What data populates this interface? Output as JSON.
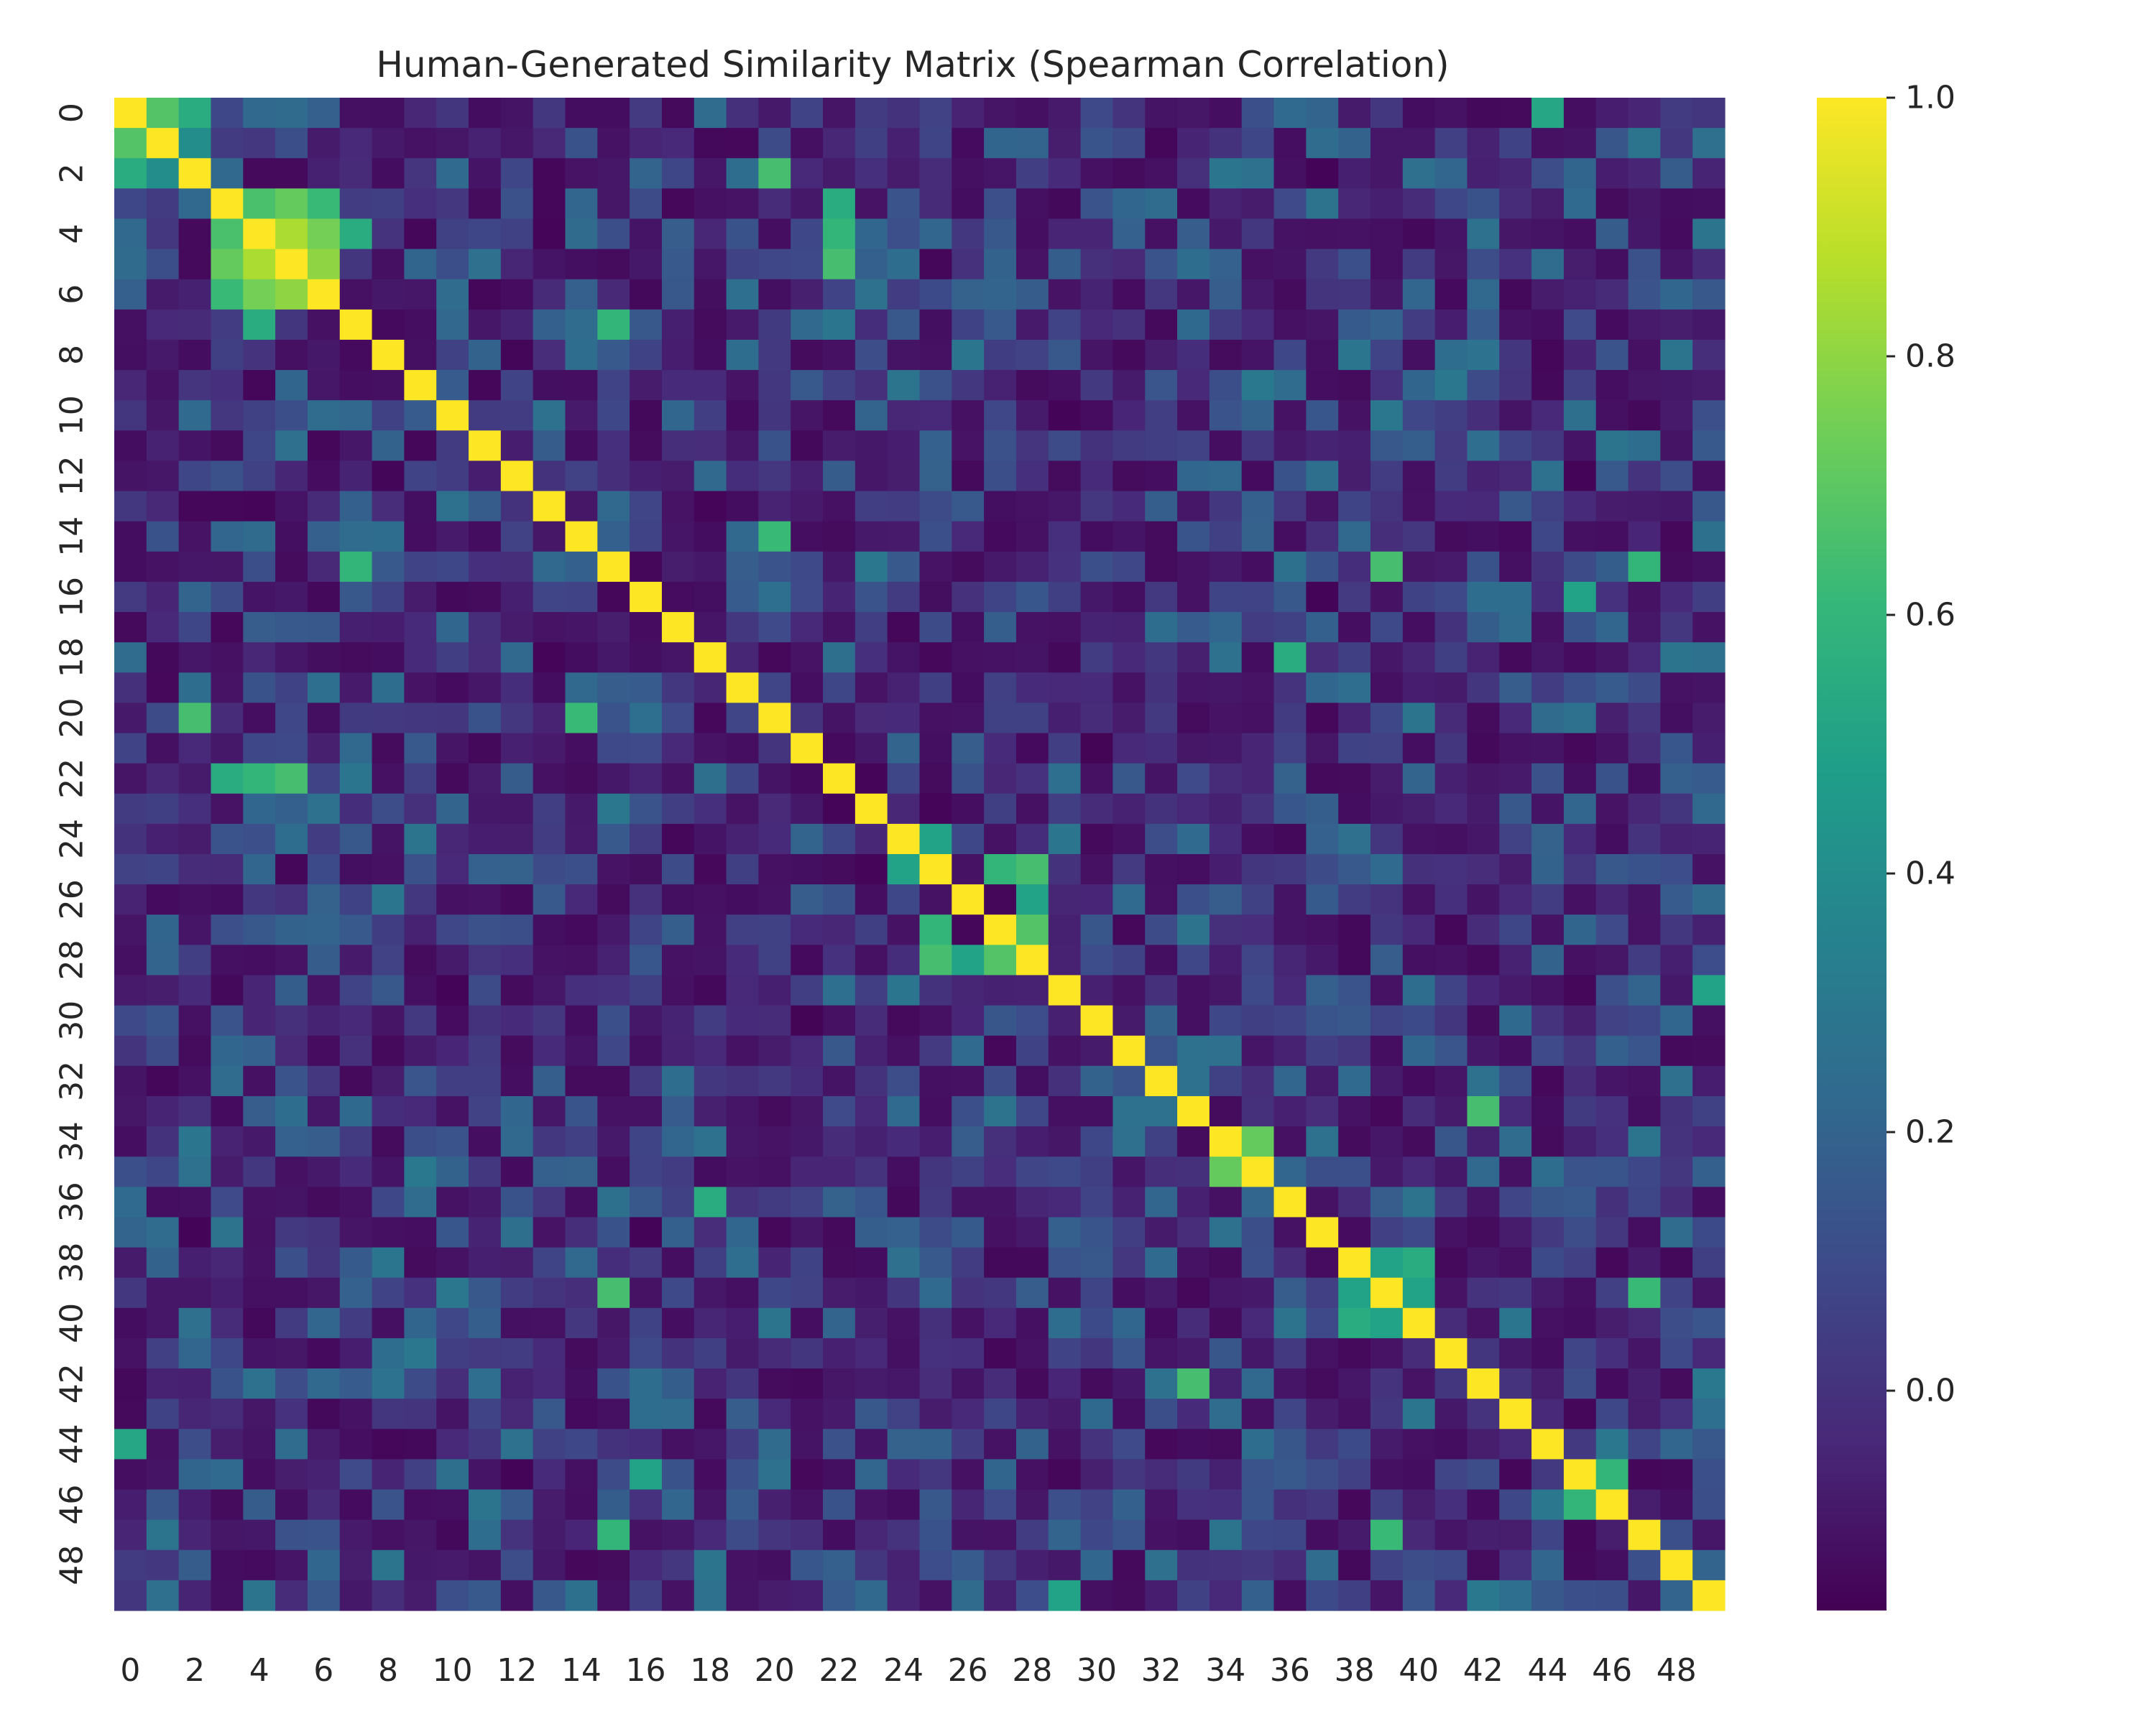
{
  "chart_data": {
    "type": "heatmap",
    "title": "Human-Generated Similarity Matrix (Spearman Correlation)",
    "xlabel": "",
    "ylabel": "",
    "n": 50,
    "x_tick_labels": [
      "0",
      "2",
      "4",
      "6",
      "8",
      "10",
      "12",
      "14",
      "16",
      "18",
      "20",
      "22",
      "24",
      "26",
      "28",
      "30",
      "32",
      "34",
      "36",
      "38",
      "40",
      "42",
      "44",
      "46",
      "48"
    ],
    "y_tick_labels": [
      "0",
      "2",
      "4",
      "6",
      "8",
      "10",
      "12",
      "14",
      "16",
      "18",
      "20",
      "22",
      "24",
      "26",
      "28",
      "30",
      "32",
      "34",
      "36",
      "38",
      "40",
      "42",
      "44",
      "46",
      "48"
    ],
    "tick_step": 2,
    "colormap": "viridis",
    "vmin": -0.17,
    "vmax": 1.0,
    "colorbar_ticks": [
      {
        "value": 0.0,
        "label": "0.0"
      },
      {
        "value": 0.2,
        "label": "0.2"
      },
      {
        "value": 0.4,
        "label": "0.4"
      },
      {
        "value": 0.6,
        "label": "0.6"
      },
      {
        "value": 0.8,
        "label": "0.8"
      },
      {
        "value": 1.0,
        "label": "1.0"
      }
    ],
    "grid": false,
    "legend": "colorbar-right",
    "diagonal_value": 1.0,
    "strong_pairs": [
      {
        "i": 0,
        "j": 1,
        "value": 0.68
      },
      {
        "i": 0,
        "j": 2,
        "value": 0.55
      },
      {
        "i": 1,
        "j": 2,
        "value": 0.4
      },
      {
        "i": 2,
        "j": 20,
        "value": 0.65
      },
      {
        "i": 3,
        "j": 4,
        "value": 0.66
      },
      {
        "i": 3,
        "j": 5,
        "value": 0.72
      },
      {
        "i": 3,
        "j": 6,
        "value": 0.62
      },
      {
        "i": 4,
        "j": 5,
        "value": 0.85
      },
      {
        "i": 4,
        "j": 6,
        "value": 0.75
      },
      {
        "i": 5,
        "j": 6,
        "value": 0.8
      },
      {
        "i": 4,
        "j": 7,
        "value": 0.55
      },
      {
        "i": 4,
        "j": 22,
        "value": 0.6
      },
      {
        "i": 5,
        "j": 22,
        "value": 0.65
      },
      {
        "i": 3,
        "j": 22,
        "value": 0.55
      },
      {
        "i": 7,
        "j": 15,
        "value": 0.6
      },
      {
        "i": 14,
        "j": 20,
        "value": 0.62
      },
      {
        "i": 15,
        "j": 39,
        "value": 0.65
      },
      {
        "i": 15,
        "j": 47,
        "value": 0.6
      },
      {
        "i": 18,
        "j": 36,
        "value": 0.55
      },
      {
        "i": 24,
        "j": 25,
        "value": 0.5
      },
      {
        "i": 25,
        "j": 28,
        "value": 0.65
      },
      {
        "i": 26,
        "j": 28,
        "value": 0.5
      },
      {
        "i": 27,
        "j": 28,
        "value": 0.68
      },
      {
        "i": 25,
        "j": 27,
        "value": 0.6
      },
      {
        "i": 33,
        "j": 42,
        "value": 0.65
      },
      {
        "i": 34,
        "j": 35,
        "value": 0.72
      },
      {
        "i": 38,
        "j": 39,
        "value": 0.5
      },
      {
        "i": 38,
        "j": 40,
        "value": 0.55
      },
      {
        "i": 39,
        "j": 40,
        "value": 0.5
      },
      {
        "i": 39,
        "j": 47,
        "value": 0.62
      },
      {
        "i": 45,
        "j": 46,
        "value": 0.6
      },
      {
        "i": 16,
        "j": 45,
        "value": 0.5
      },
      {
        "i": 29,
        "j": 49,
        "value": 0.5
      },
      {
        "i": 0,
        "j": 44,
        "value": 0.52
      }
    ]
  }
}
